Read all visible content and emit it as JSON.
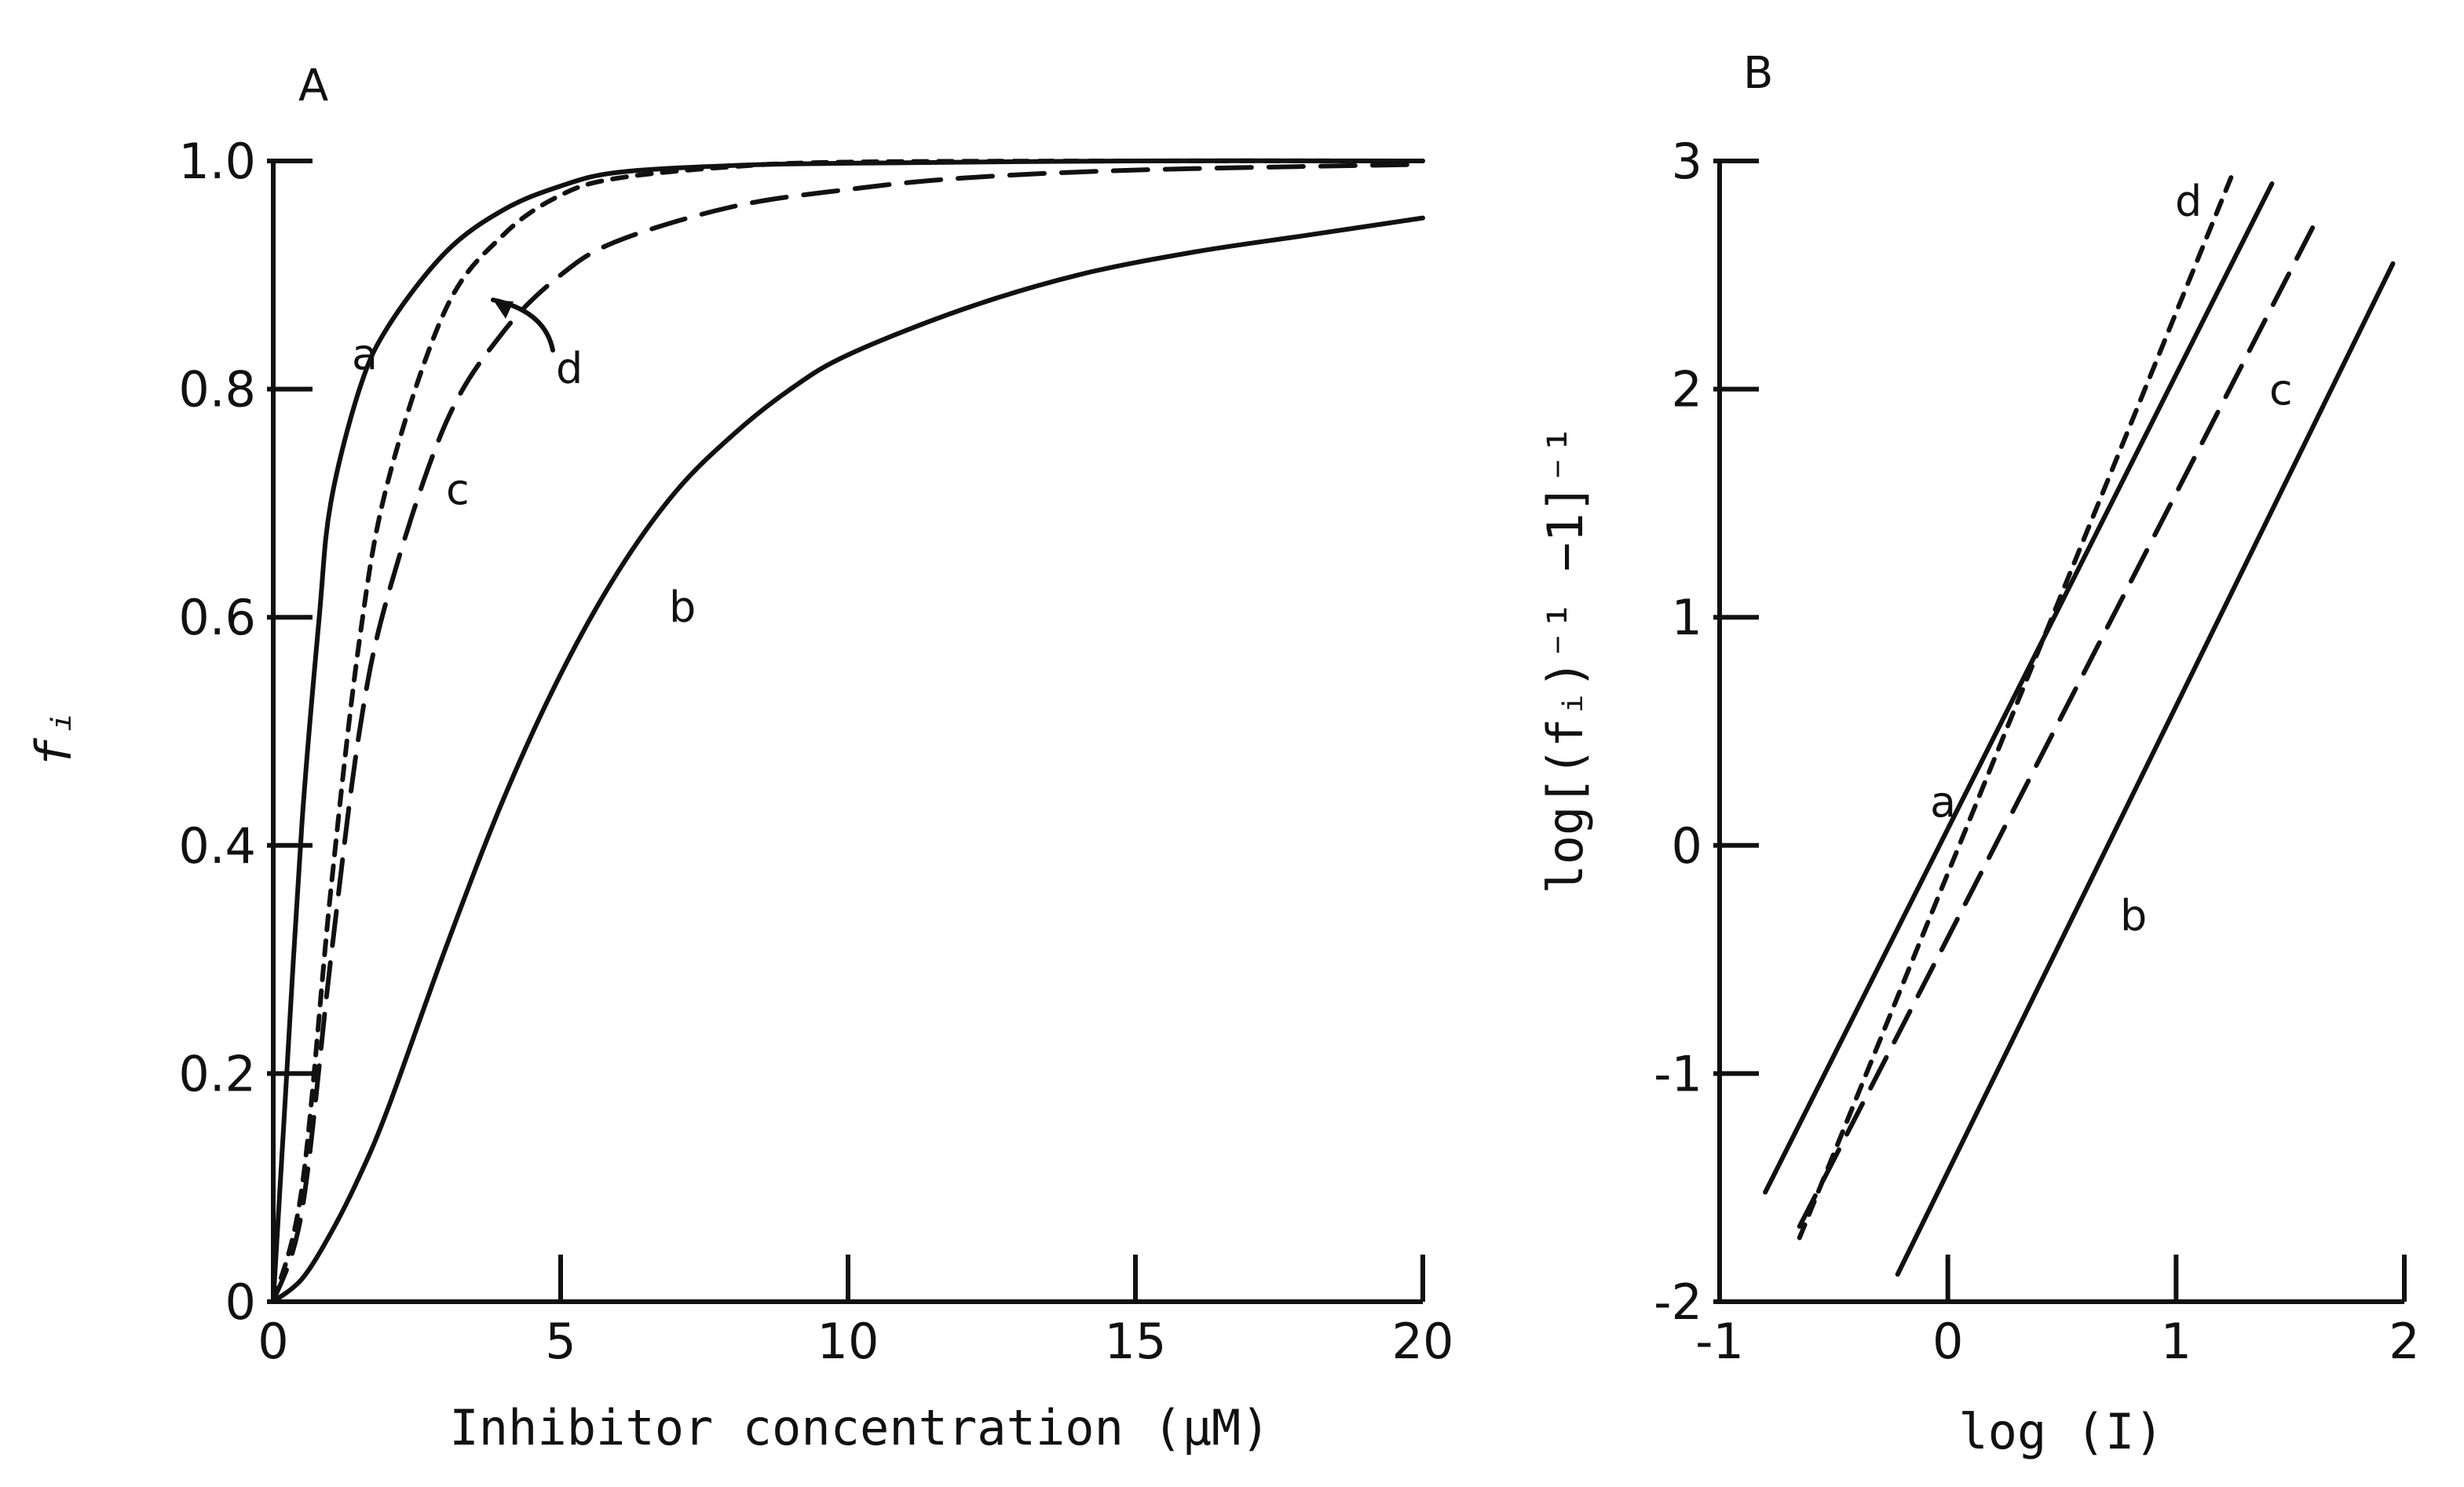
{
  "chart_data": [
    {
      "panel": "A",
      "type": "line",
      "title": "",
      "xlabel": "Inhibitor concentration (μM)",
      "ylabel": "fᵢ",
      "xlim": [
        0,
        20
      ],
      "ylim": [
        0,
        1.0
      ],
      "xticks": [
        "0",
        "5",
        "10",
        "15",
        "20"
      ],
      "yticks": [
        "0",
        "0.2",
        "0.4",
        "0.6",
        "0.8",
        "1.0"
      ],
      "grid": false,
      "legend": "none",
      "series": [
        {
          "name": "a",
          "dash": "solid",
          "x": [
            0,
            0.2,
            0.5,
            0.8,
            1,
            1.5,
            2,
            3,
            4,
            5,
            6,
            8,
            10,
            15,
            20
          ],
          "y": [
            0,
            0.17,
            0.42,
            0.6,
            0.7,
            0.8,
            0.855,
            0.92,
            0.957,
            0.978,
            0.99,
            0.996,
            0.998,
            1.0,
            1.0
          ]
        },
        {
          "name": "b",
          "dash": "solid",
          "x": [
            0,
            0.5,
            1,
            1.5,
            2,
            3,
            4,
            5,
            6,
            7,
            8,
            9,
            10,
            12,
            14,
            16,
            18,
            20
          ],
          "y": [
            0,
            0.02,
            0.06,
            0.11,
            0.17,
            0.31,
            0.44,
            0.55,
            0.64,
            0.71,
            0.76,
            0.8,
            0.83,
            0.87,
            0.9,
            0.92,
            0.935,
            0.95
          ]
        },
        {
          "name": "c",
          "dash": "long",
          "x": [
            0,
            0.5,
            1,
            1.5,
            2,
            3,
            4,
            5,
            6,
            8,
            10,
            12,
            15,
            20
          ],
          "y": [
            0,
            0.08,
            0.3,
            0.5,
            0.62,
            0.77,
            0.85,
            0.9,
            0.93,
            0.96,
            0.975,
            0.985,
            0.992,
            0.997
          ]
        },
        {
          "name": "d",
          "dash": "short",
          "x": [
            0,
            0.5,
            1,
            1.5,
            2,
            3,
            4,
            5,
            6,
            8,
            10,
            15,
            20
          ],
          "y": [
            0,
            0.1,
            0.36,
            0.58,
            0.72,
            0.87,
            0.935,
            0.97,
            0.985,
            0.995,
            0.999,
            1.0,
            1.0
          ]
        }
      ],
      "labels": [
        "a",
        "b",
        "c",
        "d"
      ]
    },
    {
      "panel": "B",
      "type": "line",
      "title": "",
      "xlabel": "log (I)",
      "ylabel": "log[(fᵢ)⁻¹ −1]⁻¹",
      "xlim": [
        -1,
        2
      ],
      "ylim": [
        -2,
        3
      ],
      "xticks": [
        "-1",
        "0",
        "1",
        "2"
      ],
      "yticks": [
        "-2",
        "-1",
        "0",
        "1",
        "2",
        "3"
      ],
      "grid": false,
      "legend": "none",
      "series": [
        {
          "name": "a",
          "dash": "solid",
          "x": [
            -0.8,
            1.42
          ],
          "y": [
            -1.52,
            2.9
          ]
        },
        {
          "name": "b",
          "dash": "solid",
          "x": [
            -0.22,
            1.95
          ],
          "y": [
            -1.88,
            2.55
          ]
        },
        {
          "name": "c",
          "dash": "long",
          "x": [
            -0.65,
            1.62
          ],
          "y": [
            -1.67,
            2.75
          ]
        },
        {
          "name": "d",
          "dash": "short",
          "x": [
            -0.65,
            1.25
          ],
          "y": [
            -1.72,
            2.95
          ]
        }
      ],
      "labels": [
        "a",
        "b",
        "c",
        "d"
      ]
    }
  ]
}
